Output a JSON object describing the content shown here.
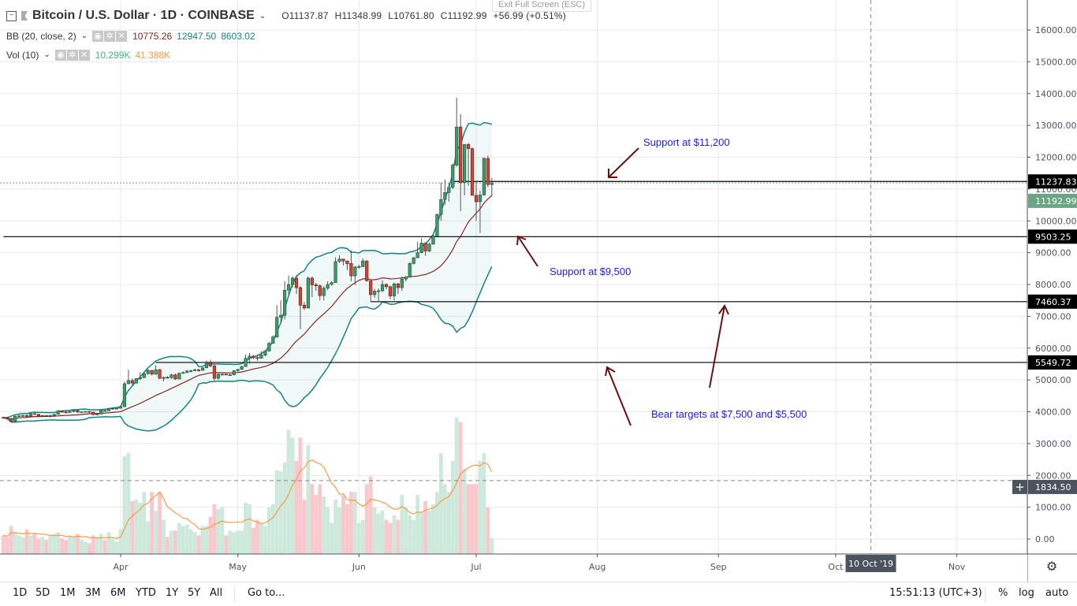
{
  "header": {
    "symbol": "Bitcoin / U.S. Dollar · 1D · COINBASE",
    "open": "O11137.87",
    "high": "H11348.99",
    "low": "L10761.80",
    "close": "C11192.99",
    "change": "+56.99 (+0.51%)",
    "exit_fullscreen": "Exit Full Screen (ESC)"
  },
  "indicators": {
    "bb": {
      "label": "BB (20, close, 2)",
      "basis": "10775.26",
      "upper": "12947.50",
      "lower": "8603.02"
    },
    "vol": {
      "label": "Vol (10)",
      "value": "10.299K",
      "ma": "41.388K"
    }
  },
  "annotations": {
    "support_11200": "Support at $11,200",
    "support_9500": "Support at $9,500",
    "bear_targets": "Bear targets at $7,500 and $5,500"
  },
  "bottom_bar": {
    "ranges": [
      "1D",
      "5D",
      "1M",
      "3M",
      "6M",
      "YTD",
      "1Y",
      "5Y",
      "All"
    ],
    "goto": "Go to...",
    "clock": "15:51:13 (UTC+3)",
    "percent": "%",
    "log": "log",
    "auto": "auto"
  },
  "colors": {
    "up": "#3f9a6a",
    "down": "#d0453a",
    "band": "#138484",
    "basis": "#872323",
    "vol_up": "#cde9dc",
    "vol_down": "#f8c8cc",
    "vol_ma": "#ff9940",
    "last_price": "#6ba583",
    "annotation": "#1a1aff",
    "arrow": "#6b0f0f"
  },
  "chart_data": {
    "type": "candlestick",
    "x_ticks": [
      {
        "label": "Apr",
        "date": "2019-04-01"
      },
      {
        "label": "May",
        "date": "2019-05-01"
      },
      {
        "label": "Jun",
        "date": "2019-06-01"
      },
      {
        "label": "Jul",
        "date": "2019-07-01"
      },
      {
        "label": "Aug",
        "date": "2019-08-01"
      },
      {
        "label": "Sep",
        "date": "2019-09-01"
      },
      {
        "label": "Oct",
        "date": "2019-10-01"
      },
      {
        "label": "Nov",
        "date": "2019-11-01"
      }
    ],
    "y_ticks": [
      "16000.00",
      "15000.00",
      "14000.00",
      "13000.00",
      "12000.00",
      "11000.00",
      "10000.00",
      "9000.00",
      "8000.00",
      "7000.00",
      "6000.00",
      "5000.00",
      "4000.00",
      "3000.00",
      "2000.00",
      "1000.00",
      "0.00"
    ],
    "ylim": [
      0,
      16000
    ],
    "crosshair": {
      "date_label": "10 Oct '19",
      "date": "2019-10-10",
      "price_label": "1834.50",
      "price": 1834.5
    },
    "horizontal_lines": [
      {
        "price": 11237.83,
        "label": "11237.83",
        "from": "2019-06-25"
      },
      {
        "price": 9503.25,
        "label": "9503.25",
        "from": "2019-03-02"
      },
      {
        "price": 7460.37,
        "label": "7460.37",
        "from": "2019-06-04"
      },
      {
        "price": 5549.72,
        "label": "5549.72",
        "from": "2019-04-10"
      }
    ],
    "last_price": {
      "price": 11192.99,
      "label": "11192.99"
    },
    "columns": [
      "date",
      "open",
      "high",
      "low",
      "close",
      "volume_k"
    ],
    "candles": [
      [
        "2019-03-02",
        3820,
        3850,
        3790,
        3810,
        12
      ],
      [
        "2019-03-03",
        3810,
        3830,
        3760,
        3790,
        11
      ],
      [
        "2019-03-04",
        3790,
        3800,
        3700,
        3700,
        18
      ],
      [
        "2019-03-05",
        3700,
        3880,
        3690,
        3860,
        14
      ],
      [
        "2019-03-06",
        3860,
        3900,
        3830,
        3870,
        12
      ],
      [
        "2019-03-07",
        3870,
        3910,
        3850,
        3880,
        11
      ],
      [
        "2019-03-08",
        3880,
        3930,
        3820,
        3860,
        16
      ],
      [
        "2019-03-09",
        3860,
        3950,
        3850,
        3940,
        12
      ],
      [
        "2019-03-10",
        3940,
        3950,
        3900,
        3920,
        13
      ],
      [
        "2019-03-11",
        3920,
        3930,
        3850,
        3870,
        10
      ],
      [
        "2019-03-12",
        3870,
        3900,
        3830,
        3880,
        11
      ],
      [
        "2019-03-13",
        3880,
        3890,
        3850,
        3870,
        9
      ],
      [
        "2019-03-14",
        3870,
        3910,
        3820,
        3880,
        12
      ],
      [
        "2019-03-15",
        3880,
        3930,
        3870,
        3920,
        13
      ],
      [
        "2019-03-16",
        3920,
        4060,
        3910,
        4020,
        14
      ],
      [
        "2019-03-17",
        4020,
        4030,
        3970,
        3990,
        10
      ],
      [
        "2019-03-18",
        3990,
        4050,
        3960,
        3980,
        9
      ],
      [
        "2019-03-19",
        3980,
        4020,
        3960,
        4010,
        12
      ],
      [
        "2019-03-20",
        4010,
        4060,
        3980,
        4040,
        11
      ],
      [
        "2019-03-21",
        4040,
        4050,
        3960,
        3990,
        13
      ],
      [
        "2019-03-22",
        3990,
        4010,
        3980,
        4000,
        9
      ],
      [
        "2019-03-23",
        4000,
        4020,
        3990,
        4010,
        8
      ],
      [
        "2019-03-24",
        4010,
        4010,
        3960,
        3990,
        7
      ],
      [
        "2019-03-25",
        3990,
        4000,
        3890,
        3910,
        12
      ],
      [
        "2019-03-26",
        3910,
        3940,
        3890,
        3930,
        11
      ],
      [
        "2019-03-27",
        3930,
        4060,
        3920,
        4040,
        13
      ],
      [
        "2019-03-28",
        4040,
        4050,
        4020,
        4030,
        9
      ],
      [
        "2019-03-29",
        4030,
        4120,
        4020,
        4100,
        14
      ],
      [
        "2019-03-30",
        4100,
        4130,
        4060,
        4110,
        10
      ],
      [
        "2019-03-31",
        4110,
        4120,
        4090,
        4110,
        8
      ],
      [
        "2019-04-01",
        4110,
        4200,
        4100,
        4160,
        16
      ],
      [
        "2019-04-02",
        4160,
        4950,
        4150,
        4880,
        63
      ],
      [
        "2019-04-03",
        4880,
        5320,
        4860,
        4980,
        65
      ],
      [
        "2019-04-04",
        4980,
        5050,
        4820,
        4900,
        34
      ],
      [
        "2019-04-05",
        4900,
        5060,
        4900,
        5040,
        35
      ],
      [
        "2019-04-06",
        5040,
        5240,
        5000,
        5070,
        33
      ],
      [
        "2019-04-07",
        5070,
        5250,
        5060,
        5200,
        40
      ],
      [
        "2019-04-08",
        5200,
        5340,
        5160,
        5300,
        21
      ],
      [
        "2019-04-09",
        5300,
        5310,
        5140,
        5180,
        40
      ],
      [
        "2019-04-10",
        5180,
        5460,
        5160,
        5320,
        28
      ],
      [
        "2019-04-11",
        5320,
        5350,
        5030,
        5050,
        40
      ],
      [
        "2019-04-12",
        5050,
        5100,
        4950,
        5080,
        22
      ],
      [
        "2019-04-13",
        5080,
        5120,
        5050,
        5070,
        11
      ],
      [
        "2019-04-14",
        5070,
        5190,
        5040,
        5160,
        15
      ],
      [
        "2019-04-15",
        5160,
        5200,
        5000,
        5030,
        15
      ],
      [
        "2019-04-16",
        5030,
        5230,
        5020,
        5210,
        20
      ],
      [
        "2019-04-17",
        5210,
        5270,
        5200,
        5230,
        18
      ],
      [
        "2019-04-18",
        5230,
        5310,
        5220,
        5280,
        19
      ],
      [
        "2019-04-19",
        5280,
        5320,
        5240,
        5290,
        16
      ],
      [
        "2019-04-20",
        5290,
        5350,
        5280,
        5320,
        14
      ],
      [
        "2019-04-21",
        5320,
        5350,
        5250,
        5300,
        12
      ],
      [
        "2019-04-22",
        5300,
        5400,
        5290,
        5380,
        18
      ],
      [
        "2019-04-23",
        5380,
        5610,
        5370,
        5540,
        18
      ],
      [
        "2019-04-24",
        5540,
        5640,
        5400,
        5440,
        24
      ],
      [
        "2019-04-25",
        5440,
        5490,
        4980,
        5050,
        32
      ],
      [
        "2019-04-26",
        5050,
        5200,
        5010,
        5180,
        29
      ],
      [
        "2019-04-27",
        5180,
        5200,
        5140,
        5180,
        30
      ],
      [
        "2019-04-28",
        5180,
        5190,
        5150,
        5160,
        12
      ],
      [
        "2019-04-29",
        5160,
        5200,
        5140,
        5160,
        15
      ],
      [
        "2019-04-30",
        5160,
        5310,
        5150,
        5290,
        14
      ],
      [
        "2019-05-01",
        5290,
        5350,
        5260,
        5330,
        15
      ],
      [
        "2019-05-02",
        5330,
        5450,
        5320,
        5420,
        15
      ],
      [
        "2019-05-03",
        5420,
        5800,
        5410,
        5680,
        33
      ],
      [
        "2019-05-04",
        5680,
        5850,
        5500,
        5750,
        32
      ],
      [
        "2019-05-05",
        5750,
        5780,
        5650,
        5700,
        17
      ],
      [
        "2019-05-06",
        5700,
        5800,
        5600,
        5680,
        22
      ],
      [
        "2019-05-07",
        5680,
        5900,
        5670,
        5780,
        20
      ],
      [
        "2019-05-08",
        5780,
        5920,
        5740,
        5910,
        18
      ],
      [
        "2019-05-09",
        5910,
        6200,
        5890,
        6150,
        30
      ],
      [
        "2019-05-10",
        6150,
        6400,
        6140,
        6350,
        32
      ],
      [
        "2019-05-11",
        6350,
        7350,
        6330,
        6970,
        54
      ],
      [
        "2019-05-12",
        6970,
        7500,
        6800,
        7030,
        53
      ],
      [
        "2019-05-13",
        7030,
        8100,
        6900,
        7820,
        59
      ],
      [
        "2019-05-14",
        7820,
        8280,
        7650,
        8000,
        80
      ],
      [
        "2019-05-15",
        8000,
        8260,
        7900,
        8200,
        75
      ],
      [
        "2019-05-16",
        8200,
        8300,
        7700,
        7900,
        60
      ],
      [
        "2019-05-17",
        7900,
        7950,
        6600,
        7350,
        75
      ],
      [
        "2019-05-18",
        7350,
        7450,
        7200,
        7260,
        35
      ],
      [
        "2019-05-19",
        7260,
        8250,
        7250,
        8200,
        70
      ],
      [
        "2019-05-20",
        8200,
        8250,
        7600,
        7990,
        45
      ],
      [
        "2019-05-21",
        7990,
        8050,
        7800,
        7960,
        38
      ],
      [
        "2019-05-22",
        7960,
        8000,
        7500,
        7650,
        45
      ],
      [
        "2019-05-23",
        7650,
        7950,
        7500,
        7880,
        37
      ],
      [
        "2019-05-24",
        7880,
        8100,
        7820,
        8000,
        30
      ],
      [
        "2019-05-25",
        8000,
        8100,
        7960,
        8060,
        20
      ],
      [
        "2019-05-26",
        8060,
        8850,
        8050,
        8720,
        35
      ],
      [
        "2019-05-27",
        8720,
        8920,
        8680,
        8800,
        30
      ],
      [
        "2019-05-28",
        8800,
        8800,
        8600,
        8740,
        38
      ],
      [
        "2019-05-29",
        8740,
        8750,
        8450,
        8650,
        32
      ],
      [
        "2019-05-30",
        8660,
        9070,
        8100,
        8270,
        40
      ],
      [
        "2019-05-31",
        8270,
        8580,
        7980,
        8550,
        40
      ],
      [
        "2019-06-01",
        8550,
        8620,
        8500,
        8560,
        20
      ],
      [
        "2019-06-02",
        8560,
        8820,
        8540,
        8740,
        22
      ],
      [
        "2019-06-03",
        8740,
        8760,
        8090,
        8120,
        45
      ],
      [
        "2019-06-04",
        8120,
        8130,
        7460,
        7680,
        50
      ],
      [
        "2019-06-05",
        7680,
        7860,
        7580,
        7790,
        30
      ],
      [
        "2019-06-06",
        7790,
        7880,
        7450,
        7800,
        26
      ],
      [
        "2019-06-07",
        7800,
        8130,
        7780,
        8000,
        28
      ],
      [
        "2019-06-08",
        8000,
        8040,
        7850,
        7930,
        22
      ],
      [
        "2019-06-09",
        7930,
        7960,
        7540,
        7640,
        20
      ],
      [
        "2019-06-10",
        7640,
        8060,
        7500,
        8020,
        25
      ],
      [
        "2019-06-11",
        8020,
        8050,
        7700,
        7900,
        22
      ],
      [
        "2019-06-12",
        7900,
        8250,
        7800,
        8170,
        38
      ],
      [
        "2019-06-13",
        8170,
        8280,
        8100,
        8230,
        30
      ],
      [
        "2019-06-14",
        8230,
        8700,
        8210,
        8660,
        25
      ],
      [
        "2019-06-15",
        8660,
        8860,
        8630,
        8840,
        22
      ],
      [
        "2019-06-16",
        8840,
        9340,
        8830,
        9000,
        38
      ],
      [
        "2019-06-17",
        9000,
        9450,
        8980,
        9300,
        27
      ],
      [
        "2019-06-18",
        9300,
        9320,
        8900,
        9050,
        34
      ],
      [
        "2019-06-19",
        9050,
        9310,
        9020,
        9270,
        28
      ],
      [
        "2019-06-20",
        9270,
        9600,
        9250,
        9530,
        32
      ],
      [
        "2019-06-21",
        9530,
        10230,
        9520,
        10200,
        40
      ],
      [
        "2019-06-22",
        10200,
        11200,
        10000,
        10670,
        65
      ],
      [
        "2019-06-23",
        10670,
        11300,
        10500,
        10890,
        45
      ],
      [
        "2019-06-24",
        10890,
        11180,
        10600,
        11050,
        40
      ],
      [
        "2019-06-25",
        11050,
        11800,
        11000,
        11750,
        60
      ],
      [
        "2019-06-26",
        11750,
        13870,
        11700,
        12950,
        88
      ],
      [
        "2019-06-27",
        12950,
        13350,
        10300,
        11200,
        85
      ],
      [
        "2019-06-28",
        11200,
        12400,
        10800,
        12400,
        55
      ],
      [
        "2019-06-29",
        12400,
        12450,
        11100,
        12270,
        45
      ],
      [
        "2019-06-30",
        12270,
        12300,
        10800,
        10800,
        45
      ],
      [
        "2019-07-01",
        10800,
        11250,
        10000,
        10600,
        45
      ],
      [
        "2019-07-02",
        10600,
        10950,
        9620,
        10810,
        60
      ],
      [
        "2019-07-03",
        10810,
        12000,
        10800,
        11960,
        65
      ],
      [
        "2019-07-04",
        11960,
        12050,
        11060,
        11140,
        30
      ],
      [
        "2019-07-05",
        11137.87,
        11348.99,
        10761.8,
        11192.99,
        10.299
      ]
    ]
  }
}
